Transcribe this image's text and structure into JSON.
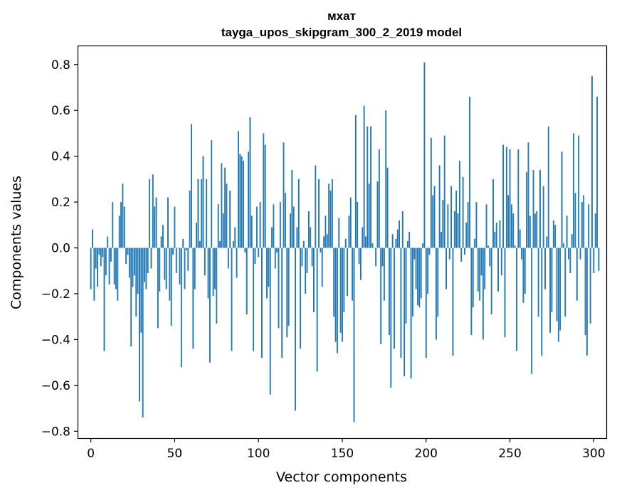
{
  "chart_data": {
    "type": "bar",
    "title_line1": "мхат",
    "title_line2": "tayga_upos_skipgram_300_2_2019 model",
    "xlabel": "Vector components",
    "ylabel": "Components values",
    "xlim": [
      -7.5,
      307.5
    ],
    "ylim": [
      -0.83,
      0.88
    ],
    "xticks": [
      0,
      50,
      100,
      150,
      200,
      250,
      300
    ],
    "xtick_labels": [
      "0",
      "50",
      "100",
      "150",
      "200",
      "250",
      "300"
    ],
    "yticks": [
      -0.8,
      -0.6,
      -0.4,
      -0.2,
      0.0,
      0.2,
      0.4,
      0.6,
      0.8
    ],
    "ytick_labels": [
      "−0.8",
      "−0.6",
      "−0.4",
      "−0.2",
      "0.0",
      "0.2",
      "0.4",
      "0.6",
      "0.8"
    ],
    "bar_color": "#1f77b4",
    "values": [
      -0.18,
      0.08,
      -0.23,
      -0.09,
      -0.17,
      -0.03,
      -0.08,
      -0.04,
      -0.45,
      -0.12,
      0.05,
      -0.16,
      -0.06,
      0.2,
      -0.16,
      -0.18,
      -0.23,
      0.14,
      0.2,
      0.28,
      0.18,
      -0.07,
      -0.03,
      -0.13,
      -0.43,
      -0.17,
      -0.12,
      -0.3,
      -0.2,
      -0.67,
      -0.37,
      -0.74,
      -0.15,
      -0.18,
      -0.11,
      0.3,
      -0.09,
      0.32,
      0.18,
      0.22,
      -0.35,
      -0.19,
      0.05,
      0.1,
      -0.14,
      -0.18,
      0.22,
      -0.23,
      -0.34,
      -0.03,
      0.18,
      -0.11,
      0.0,
      -0.16,
      -0.52,
      0.04,
      -0.18,
      -0.01,
      -0.1,
      0.25,
      0.54,
      -0.44,
      -0.18,
      0.11,
      0.3,
      0.03,
      0.3,
      0.4,
      -0.12,
      0.3,
      -0.22,
      -0.5,
      0.47,
      -0.21,
      -0.18,
      -0.33,
      0.19,
      0.03,
      0.37,
      0.15,
      0.35,
      0.28,
      -0.09,
      0.25,
      -0.45,
      0.03,
      0.09,
      -0.13,
      0.51,
      0.41,
      0.4,
      0.38,
      -0.02,
      -0.29,
      0.42,
      0.57,
      0.14,
      -0.45,
      -0.07,
      0.18,
      -0.04,
      0.2,
      -0.48,
      0.5,
      0.45,
      -0.22,
      -0.17,
      -0.64,
      0.09,
      0.19,
      -0.09,
      -0.02,
      -0.35,
      0.2,
      -0.48,
      0.46,
      0.24,
      -0.39,
      -0.34,
      0.15,
      0.34,
      0.18,
      -0.71,
      0.09,
      0.3,
      -0.44,
      -0.08,
      0.03,
      -0.2,
      -0.11,
      0.16,
      0.09,
      -0.08,
      -0.28,
      0.36,
      -0.54,
      0.3,
      -0.02,
      -0.17,
      0.05,
      0.14,
      0.06,
      0.28,
      0.25,
      0.3,
      -0.3,
      -0.41,
      -0.46,
      0.13,
      -0.37,
      -0.41,
      -0.28,
      0.04,
      -0.21,
      0.14,
      0.22,
      -0.23,
      -0.76,
      0.58,
      0.2,
      -0.07,
      -0.14,
      0.09,
      0.62,
      0.05,
      0.53,
      0.28,
      0.53,
      0.02,
      0.0,
      -0.08,
      0.29,
      0.43,
      -0.42,
      -0.08,
      -0.23,
      0.6,
      0.35,
      -0.38,
      -0.61,
      0.06,
      -0.44,
      0.04,
      0.08,
      0.12,
      -0.48,
      0.16,
      -0.56,
      -0.33,
      0.03,
      0.07,
      -0.57,
      -0.3,
      -0.05,
      -0.18,
      -0.25,
      -0.26,
      -0.22,
      0.02,
      0.81,
      -0.48,
      -0.2,
      -0.03,
      0.48,
      0.23,
      0.27,
      -0.4,
      -0.3,
      0.36,
      0.07,
      0.21,
      0.49,
      -0.18,
      0.19,
      -0.05,
      0.27,
      -0.47,
      0.16,
      0.25,
      0.15,
      0.38,
      -0.06,
      0.31,
      -0.03,
      0.11,
      0.2,
      0.66,
      -0.38,
      -0.26,
      0.04,
      0.2,
      -0.19,
      -0.23,
      -0.12,
      -0.4,
      -0.18,
      0.19,
      0.01,
      -0.08,
      -0.29,
      0.3,
      0.07,
      0.11,
      -0.19,
      0.12,
      -0.12,
      0.45,
      -0.39,
      0.44,
      0.23,
      0.43,
      0.19,
      0.15,
      0.01,
      -0.45,
      0.43,
      0.08,
      -0.05,
      -0.24,
      -0.2,
      0.33,
      0.46,
      0.14,
      -0.55,
      0.34,
      0.15,
      0.16,
      -0.3,
      0.34,
      -0.47,
      0.27,
      -0.18,
      0.05,
      0.53,
      -0.37,
      -0.28,
      0.12,
      0.1,
      -0.32,
      -0.41,
      -0.36,
      0.42,
      0.02,
      -0.3,
      0.14,
      -0.05,
      -0.11,
      0.06,
      0.5,
      0.24,
      -0.23,
      0.49,
      -0.05,
      0.2,
      0.23,
      -0.38,
      -0.47,
      0.19,
      -0.33,
      0.75,
      -0.11,
      0.15,
      0.66,
      -0.1
    ]
  }
}
